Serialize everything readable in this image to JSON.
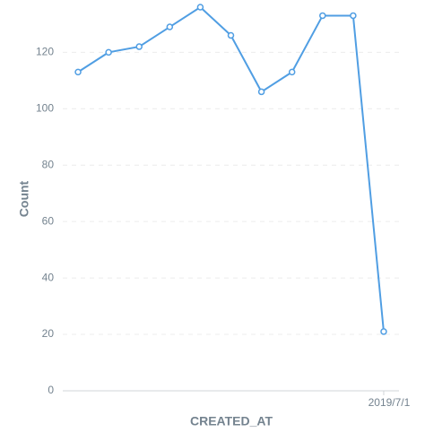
{
  "chart_data": {
    "type": "line",
    "x_label": "CREATED_AT",
    "y_label": "Count",
    "categories": [
      null,
      null,
      null,
      null,
      null,
      null,
      null,
      null,
      null,
      null,
      "2019/7/1"
    ],
    "values": [
      113,
      120,
      122,
      129,
      136,
      126,
      106,
      113,
      133,
      133,
      21
    ],
    "color": "#509ee3",
    "ylim": [
      0,
      136
    ],
    "yticks": [
      0,
      20,
      40,
      60,
      80,
      100,
      120
    ],
    "grid": true
  }
}
